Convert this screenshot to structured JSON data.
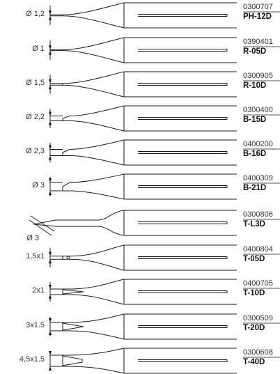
{
  "colors": {
    "stroke": "#1a1a1a",
    "text": "#333333"
  },
  "tips": [
    {
      "dimension": "Ø 1,2",
      "code": "0300707",
      "model": "PH-12D",
      "shape": "conical"
    },
    {
      "dimension": "Ø 1",
      "code": "0390401",
      "model": "R-05D",
      "shape": "conical-fine"
    },
    {
      "dimension": "Ø 1,5",
      "code": "0300905",
      "model": "R-10D",
      "shape": "conical"
    },
    {
      "dimension": "Ø 2,2",
      "code": "0300400",
      "model": "B-15D",
      "shape": "bevel"
    },
    {
      "dimension": "Ø 2,3",
      "code": "0400200",
      "model": "B-16D",
      "shape": "bevel"
    },
    {
      "dimension": "Ø 3",
      "code": "0400309",
      "model": "B-21D",
      "shape": "bevel"
    },
    {
      "dimension": "Ø 3",
      "code": "0300806",
      "model": "T-L3D",
      "shape": "bent"
    },
    {
      "dimension": "1,5x1",
      "code": "0400804",
      "model": "T-05D",
      "shape": "chisel-round"
    },
    {
      "dimension": "2x1",
      "code": "0400705",
      "model": "T-10D",
      "shape": "chisel"
    },
    {
      "dimension": "3x1.5",
      "code": "0300509",
      "model": "T-20D",
      "shape": "chisel"
    },
    {
      "dimension": "4,5x1.5",
      "code": "0300608",
      "model": "T-40D",
      "shape": "chisel-wide"
    }
  ]
}
